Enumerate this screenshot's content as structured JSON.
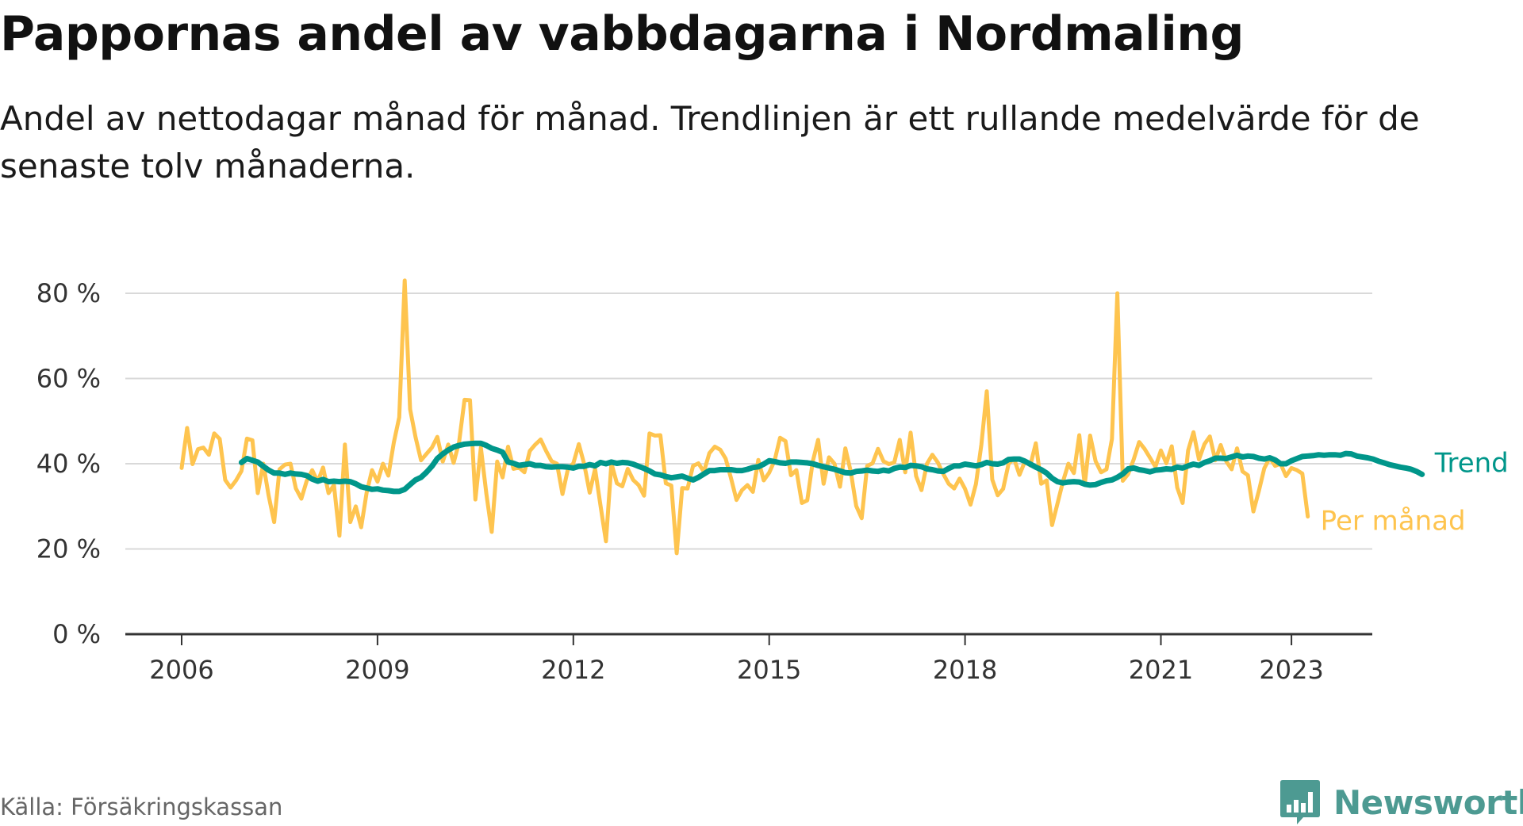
{
  "chart_data": {
    "type": "line",
    "title": "Pappornas andel av vabbdagarna i Nordmaling",
    "subtitle": "Andel av nettodagar månad för månad. Trendlinjen är ett rullande medelvärde för de senaste tolv månaderna.",
    "xlabel": "",
    "ylabel": "",
    "x_tick_labels": [
      "2006",
      "2009",
      "2012",
      "2015",
      "2018",
      "2021",
      "2023"
    ],
    "y_tick_labels": [
      "0 %",
      "20 %",
      "40 %",
      "60 %",
      "80 %"
    ],
    "y_ticks": [
      0,
      20,
      40,
      60,
      80
    ],
    "ylim": [
      0,
      90
    ],
    "xlim": [
      "2005-03",
      "2024-07"
    ],
    "grid": "horizontal",
    "legend_placement": "line-end labels, right",
    "series": [
      {
        "name": "Per månad",
        "color": "#fec44f",
        "start": "2006-01",
        "values": [
          39.0,
          48.4,
          39.9,
          43.4,
          43.8,
          42.1,
          47.1,
          45.8,
          36.2,
          34.4,
          36.1,
          38.3,
          45.9,
          45.5,
          33.1,
          40.0,
          32.5,
          26.3,
          38.7,
          39.8,
          40.0,
          34.2,
          31.8,
          36.0,
          38.5,
          35.8,
          39.1,
          33.1,
          35.0,
          23.1,
          44.5,
          26.3,
          30.0,
          25.1,
          33.2,
          38.5,
          35.8,
          40.0,
          37.2,
          45.0,
          50.9,
          83.0,
          52.8,
          46.2,
          40.8,
          42.3,
          43.8,
          46.3,
          40.5,
          44.5,
          40.2,
          45.1,
          55.0,
          54.9,
          31.6,
          43.8,
          33.0,
          24.0,
          40.5,
          36.8,
          44.0,
          38.8,
          39.1,
          38.0,
          43.0,
          44.5,
          45.7,
          43.0,
          40.6,
          40.0,
          32.9,
          38.7,
          40.1,
          44.6,
          39.9,
          33.2,
          38.8,
          30.1,
          21.8,
          40.1,
          35.4,
          34.7,
          38.8,
          36.2,
          35.0,
          32.5,
          47.1,
          46.6,
          46.7,
          35.4,
          34.9,
          19.0,
          34.3,
          34.2,
          39.5,
          40.1,
          38.1,
          42.5,
          44.0,
          43.3,
          41.2,
          36.5,
          31.5,
          33.8,
          35.0,
          33.4,
          40.9,
          36.1,
          37.9,
          40.8,
          46.1,
          45.3,
          37.3,
          38.5,
          30.8,
          31.4,
          40.5,
          45.6,
          35.3,
          41.5,
          40.0,
          34.6,
          43.6,
          38.1,
          30.1,
          27.2,
          39.5,
          40.1,
          43.5,
          40.6,
          39.9,
          40.3,
          45.6,
          38.0,
          47.3,
          37.1,
          33.8,
          40.0,
          42.1,
          40.3,
          37.6,
          35.3,
          34.2,
          36.5,
          34.1,
          30.4,
          35.2,
          44.5,
          57.0,
          36.3,
          32.6,
          34.1,
          40.0,
          41.2,
          37.4,
          40.5,
          39.6,
          44.8,
          35.3,
          36.1,
          25.6,
          30.7,
          35.8,
          40.0,
          37.8,
          46.7,
          35.1,
          46.6,
          40.6,
          38.0,
          38.7,
          45.8,
          80.0,
          36.0,
          37.6,
          41.0,
          45.1,
          43.5,
          41.4,
          39.3,
          43.1,
          40.1,
          44.1,
          34.4,
          30.8,
          43.1,
          47.4,
          41.0,
          44.6,
          46.4,
          40.8,
          44.4,
          40.6,
          38.7,
          43.6,
          38.2,
          37.3,
          28.8,
          33.6,
          38.9,
          41.4,
          39.5,
          40.0,
          37.1,
          39.0,
          38.5,
          37.7,
          27.6
        ]
      },
      {
        "name": "Trend",
        "color": "#00968a",
        "start": "2006-12",
        "values": [
          40.3,
          41.2,
          40.8,
          40.4,
          39.4,
          38.5,
          37.8,
          37.8,
          37.5,
          37.8,
          37.6,
          37.5,
          37.2,
          36.4,
          35.9,
          36.3,
          35.8,
          35.9,
          35.8,
          35.9,
          35.8,
          35.3,
          34.6,
          34.3,
          34.0,
          34.1,
          33.8,
          33.7,
          33.5,
          33.5,
          34.0,
          35.1,
          36.2,
          36.8,
          38.0,
          39.4,
          41.2,
          42.3,
          43.2,
          43.9,
          44.3,
          44.6,
          44.7,
          44.8,
          44.8,
          44.3,
          43.6,
          43.2,
          42.7,
          40.4,
          40.1,
          39.6,
          39.8,
          40.0,
          39.6,
          39.6,
          39.3,
          39.2,
          39.3,
          39.3,
          39.2,
          39.0,
          39.4,
          39.4,
          39.8,
          39.5,
          40.3,
          40.0,
          40.4,
          40.1,
          40.3,
          40.2,
          39.9,
          39.4,
          38.9,
          38.3,
          37.6,
          37.4,
          37.0,
          36.7,
          36.9,
          37.1,
          36.6,
          36.2,
          36.8,
          37.6,
          38.4,
          38.4,
          38.6,
          38.6,
          38.6,
          38.4,
          38.4,
          38.7,
          39.1,
          39.3,
          39.9,
          40.7,
          40.5,
          40.2,
          40.1,
          40.4,
          40.4,
          40.3,
          40.2,
          40.0,
          39.6,
          39.3,
          39.0,
          38.7,
          38.3,
          37.9,
          37.8,
          38.2,
          38.3,
          38.5,
          38.3,
          38.2,
          38.5,
          38.3,
          38.9,
          39.2,
          39.1,
          39.6,
          39.5,
          39.3,
          38.8,
          38.6,
          38.3,
          38.2,
          38.9,
          39.5,
          39.5,
          39.9,
          39.7,
          39.5,
          39.8,
          40.3,
          40.0,
          39.9,
          40.2,
          41.0,
          41.1,
          41.1,
          40.6,
          39.9,
          39.2,
          38.6,
          37.8,
          36.6,
          35.8,
          35.5,
          35.7,
          35.8,
          35.7,
          35.2,
          35.0,
          35.1,
          35.6,
          36.0,
          36.2,
          36.8,
          37.6,
          38.8,
          39.0,
          38.6,
          38.4,
          38.1,
          38.5,
          38.6,
          38.8,
          38.7,
          39.2,
          39.0,
          39.5,
          39.9,
          39.6,
          40.3,
          40.7,
          41.3,
          41.3,
          41.2,
          41.6,
          42.0,
          41.6,
          41.8,
          41.7,
          41.3,
          41.1,
          41.4,
          40.9,
          40.0,
          40.0,
          40.7,
          41.2,
          41.7,
          41.8,
          41.9,
          42.1,
          42.0,
          42.1,
          42.1,
          42.0,
          42.4,
          42.3,
          41.8,
          41.6,
          41.4,
          41.1,
          40.6,
          40.2,
          39.8,
          39.5,
          39.2,
          39.0,
          38.7,
          38.2,
          37.5
        ]
      }
    ]
  },
  "footer": {
    "source": "Källa: Försäkringskassan",
    "brand": "Newsworthy",
    "brand_color": "#4d9a92",
    "logo_icon": "bar-chart-speech-bubble-icon"
  }
}
